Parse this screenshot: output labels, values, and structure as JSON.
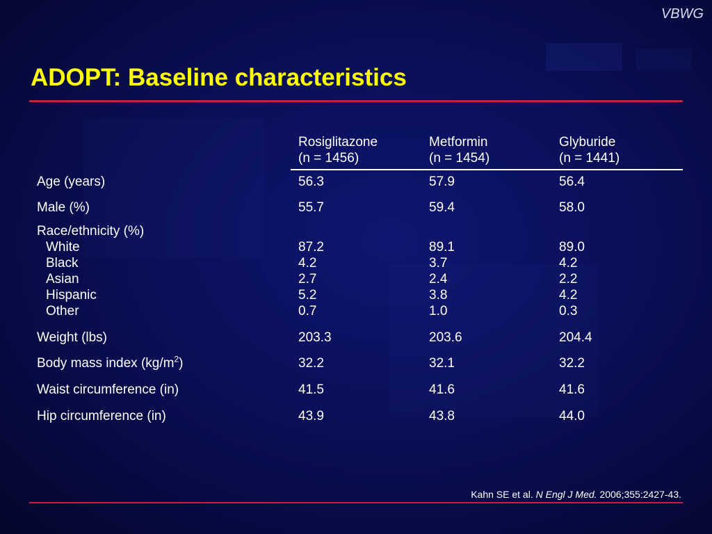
{
  "brand": "VBWG",
  "title": "ADOPT: Baseline characteristics",
  "columns": [
    {
      "name": "Rosiglitazone",
      "n": "(n = 1456)"
    },
    {
      "name": "Metformin",
      "n": "(n = 1454)"
    },
    {
      "name": "Glyburide",
      "n": "(n = 1441)"
    }
  ],
  "rows": {
    "age": {
      "label": "Age (years)",
      "values": [
        "56.3",
        "57.9",
        "56.4"
      ]
    },
    "male": {
      "label": "Male (%)",
      "values": [
        "55.7",
        "59.4",
        "58.0"
      ]
    },
    "race_header": "Race/ethnicity (%)",
    "white": {
      "label": "White",
      "values": [
        "87.2",
        "89.1",
        "89.0"
      ]
    },
    "black": {
      "label": "Black",
      "values": [
        "4.2",
        "3.7",
        "4.2"
      ]
    },
    "asian": {
      "label": "Asian",
      "values": [
        "2.7",
        "2.4",
        "2.2"
      ]
    },
    "hispanic": {
      "label": "Hispanic",
      "values": [
        "5.2",
        "3.8",
        "4.2"
      ]
    },
    "other": {
      "label": "Other",
      "values": [
        "0.7",
        "1.0",
        "0.3"
      ]
    },
    "weight": {
      "label": "Weight (lbs)",
      "values": [
        "203.3",
        "203.6",
        "204.4"
      ]
    },
    "bmi": {
      "label_prefix": "Body mass index (kg/m",
      "label_sup": "2",
      "label_suffix": ")",
      "values": [
        "32.2",
        "32.1",
        "32.2"
      ]
    },
    "waist": {
      "label": "Waist circumference (in)",
      "values": [
        "41.5",
        "41.6",
        "41.6"
      ]
    },
    "hip": {
      "label": "Hip circumference (in)",
      "values": [
        "43.9",
        "43.8",
        "44.0"
      ]
    }
  },
  "citation": {
    "authors": "Kahn SE et al.",
    "journal": "N Engl J Med.",
    "ref": "2006;355:2427-43."
  },
  "colors": {
    "title": "#ffff00",
    "rule": "#c0233f",
    "background": "#0a0f58"
  }
}
